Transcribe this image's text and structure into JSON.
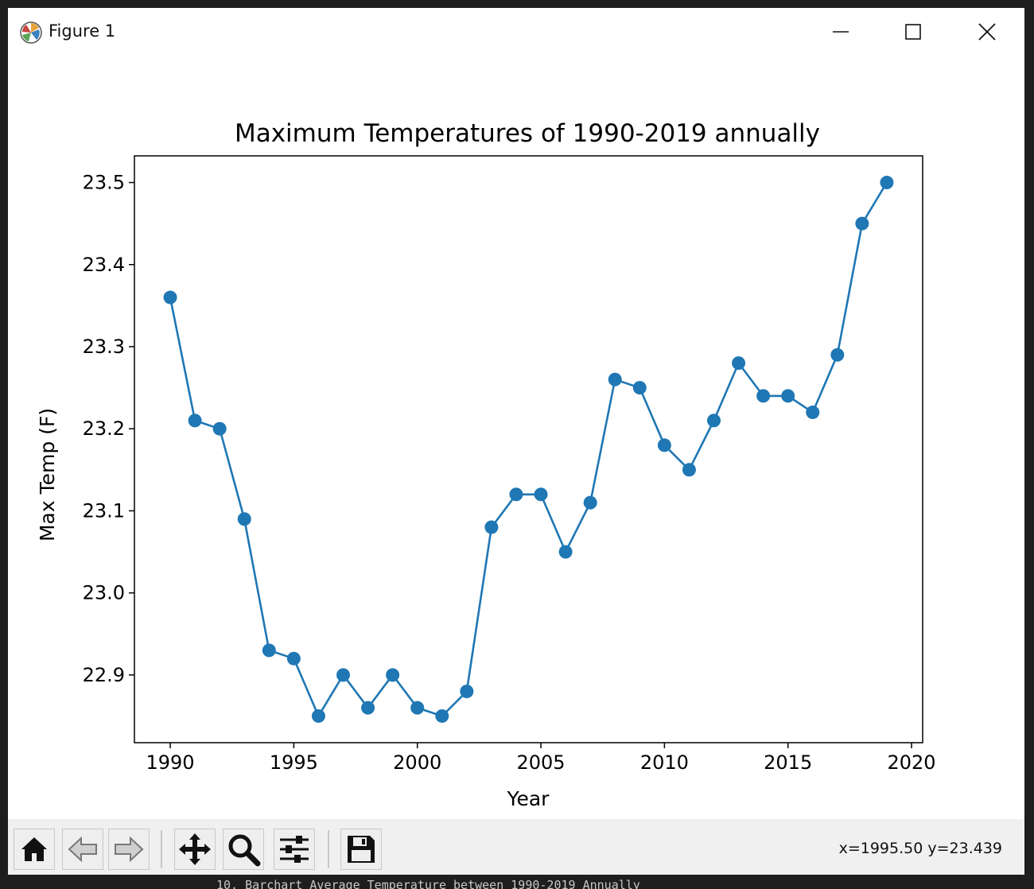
{
  "window": {
    "title": "Figure 1",
    "minimize_icon": "minimize-icon",
    "maximize_icon": "maximize-icon",
    "close_icon": "close-icon"
  },
  "background_text": "10. Barchart Average Temperature between 1990-2019 Annually",
  "toolbar": {
    "buttons": [
      {
        "name": "home",
        "icon": "home-icon"
      },
      {
        "name": "back",
        "icon": "arrow-left-icon"
      },
      {
        "name": "forward",
        "icon": "arrow-right-icon"
      },
      {
        "name": "pan",
        "icon": "move-icon"
      },
      {
        "name": "zoom",
        "icon": "magnifier-icon"
      },
      {
        "name": "configure-subplots",
        "icon": "sliders-icon"
      },
      {
        "name": "save",
        "icon": "floppy-disk-icon"
      }
    ],
    "coordinates": "x=1995.50 y=23.439"
  },
  "chart_data": {
    "type": "line",
    "title": "Maximum Temperatures of 1990-2019 annually",
    "xlabel": "Year",
    "ylabel": "Max Temp (F)",
    "x": [
      1990,
      1991,
      1992,
      1993,
      1994,
      1995,
      1996,
      1997,
      1998,
      1999,
      2000,
      2001,
      2002,
      2003,
      2004,
      2005,
      2006,
      2007,
      2008,
      2009,
      2010,
      2011,
      2012,
      2013,
      2014,
      2015,
      2016,
      2017,
      2018,
      2019
    ],
    "y": [
      23.36,
      23.21,
      23.2,
      23.09,
      22.93,
      22.92,
      22.85,
      22.9,
      22.86,
      22.9,
      22.86,
      22.85,
      22.88,
      23.08,
      23.12,
      23.12,
      23.05,
      23.11,
      23.26,
      23.25,
      23.18,
      23.15,
      23.21,
      23.28,
      23.24,
      23.24,
      23.22,
      23.29,
      23.45,
      23.5
    ],
    "xticks": [
      "1990",
      "1995",
      "2000",
      "2005",
      "2010",
      "2015",
      "2020"
    ],
    "yticks": [
      "22.9",
      "23.0",
      "23.1",
      "23.2",
      "23.3",
      "23.4",
      "23.5"
    ],
    "xlim": [
      1988.55,
      2020.45
    ],
    "ylim": [
      22.8175,
      23.5325
    ],
    "marker": "circle",
    "grid": false,
    "legend": null,
    "color": "#1f77b4"
  }
}
